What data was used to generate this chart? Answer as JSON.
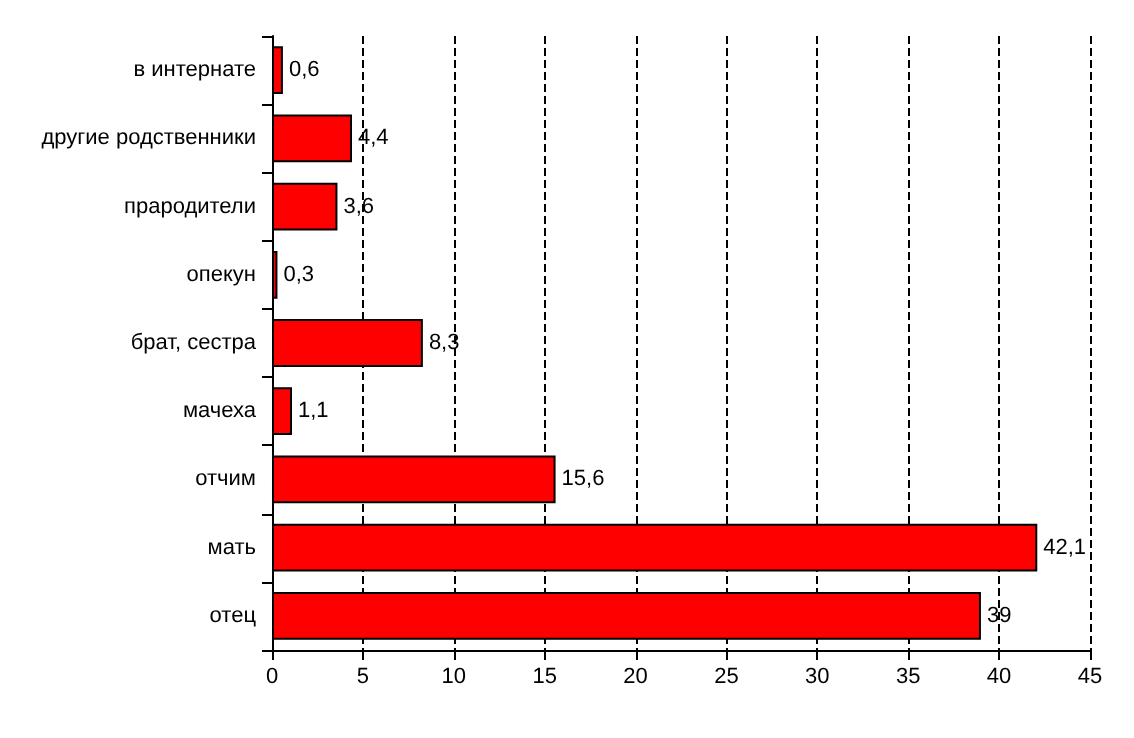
{
  "chart_data": {
    "type": "bar",
    "orientation": "horizontal",
    "categories": [
      "в интернате",
      "другие родственники",
      "прародители",
      "опекун",
      "брат, сестра",
      "мачеха",
      "отчим",
      "мать",
      "отец"
    ],
    "values": [
      0.6,
      4.4,
      3.6,
      0.3,
      8.3,
      1.1,
      15.6,
      42.1,
      39
    ],
    "value_labels": [
      "0,6",
      "4,4",
      "3,6",
      "0,3",
      "8,3",
      "1,1",
      "15,6",
      "42,1",
      "39"
    ],
    "color": "#ff0000",
    "xlim": [
      0,
      45
    ],
    "xticks": [
      0,
      5,
      10,
      15,
      20,
      25,
      30,
      35,
      40,
      45
    ],
    "grid": "x"
  }
}
